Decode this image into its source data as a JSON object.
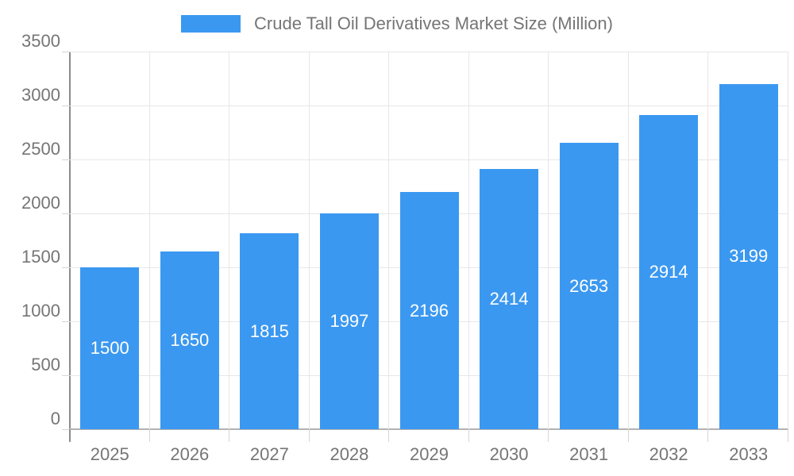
{
  "chart_data": {
    "type": "bar",
    "title": "Crude Tall Oil Derivatives Market Size (Million)",
    "legend": [
      "Crude Tall Oil Derivatives Market Size (Million)"
    ],
    "legend_position": "top",
    "categories": [
      "2025",
      "2026",
      "2027",
      "2028",
      "2029",
      "2030",
      "2031",
      "2032",
      "2033"
    ],
    "values": [
      1500,
      1650,
      1815,
      1997,
      2196,
      2414,
      2653,
      2914,
      3199
    ],
    "bar_labels": [
      "1500",
      "1650",
      "1815",
      "1997",
      "2196",
      "2414",
      "2653",
      "2914",
      "3199"
    ],
    "xlabel": "",
    "ylabel": "",
    "ylim": [
      0,
      3500
    ],
    "ytick_step": 500,
    "yticks": [
      "0",
      "500",
      "1000",
      "1500",
      "2000",
      "2500",
      "3000",
      "3500"
    ],
    "grid": true,
    "colors": {
      "bar": "#3b98f0",
      "bar_label_text": "#ffffff",
      "axis_text": "#757575",
      "gridline": "#e7e7e7",
      "tick": "#d6d6d6",
      "x_baseline": "#b2b2b2",
      "y_axis_line": "#8b8b8b",
      "background": "#ffffff"
    }
  }
}
